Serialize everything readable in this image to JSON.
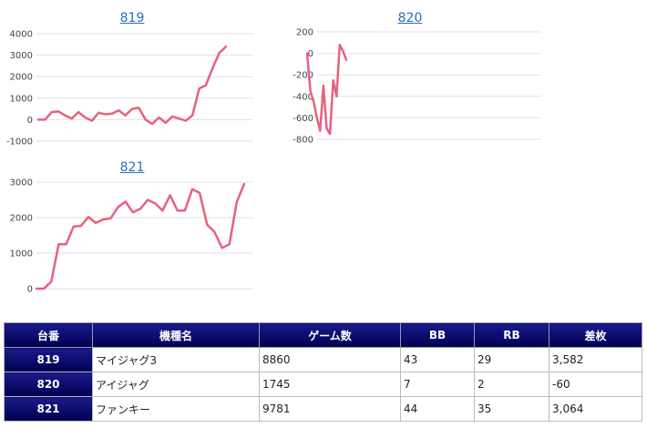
{
  "charts": [
    {
      "title": "819",
      "chart_data": {
        "type": "line",
        "ylim": [
          -1000,
          4000
        ],
        "yticks": [
          "4000",
          "3000",
          "2000",
          "1000",
          "0",
          "-1000"
        ],
        "color": "#e8617f",
        "values": [
          0,
          0,
          350,
          380,
          200,
          50,
          350,
          100,
          -50,
          320,
          250,
          280,
          430,
          200,
          500,
          550,
          0,
          -200,
          100,
          -150,
          150,
          50,
          -50,
          200,
          1450,
          1600,
          2400,
          3100,
          3400
        ]
      }
    },
    {
      "title": "820",
      "chart_data": {
        "type": "line",
        "ylim": [
          -800,
          200
        ],
        "yticks": [
          "200",
          "0",
          "-200",
          "-400",
          "-600",
          "-800"
        ],
        "color": "#e8617f",
        "values": [
          0,
          -350,
          -450,
          -600,
          -720,
          -300,
          -700,
          -750,
          -250,
          -400,
          80,
          20,
          -60
        ]
      }
    },
    {
      "title": "821",
      "chart_data": {
        "type": "line",
        "ylim": [
          0,
          3000
        ],
        "yticks": [
          "3000",
          "2000",
          "1000",
          "0"
        ],
        "color": "#e8617f",
        "values": [
          0,
          0,
          200,
          1250,
          1250,
          1750,
          1770,
          2020,
          1850,
          1950,
          1980,
          2300,
          2450,
          2150,
          2250,
          2500,
          2400,
          2200,
          2630,
          2200,
          2200,
          2800,
          2700,
          1800,
          1600,
          1150,
          1250,
          2450,
          2950
        ]
      }
    }
  ],
  "table": {
    "headers": [
      "台番",
      "機種名",
      "ゲーム数",
      "BB",
      "RB",
      "差枚"
    ],
    "rows": [
      {
        "no": "819",
        "name": "マイジャグ3",
        "games": "8860",
        "bb": "43",
        "rb": "29",
        "diff": "3,582",
        "negative": false
      },
      {
        "no": "820",
        "name": "アイジャグ",
        "games": "1745",
        "bb": "7",
        "rb": "2",
        "diff": "-60",
        "negative": true
      },
      {
        "no": "821",
        "name": "ファンキー",
        "games": "9781",
        "bb": "44",
        "rb": "35",
        "diff": "3,064",
        "negative": false
      }
    ]
  }
}
